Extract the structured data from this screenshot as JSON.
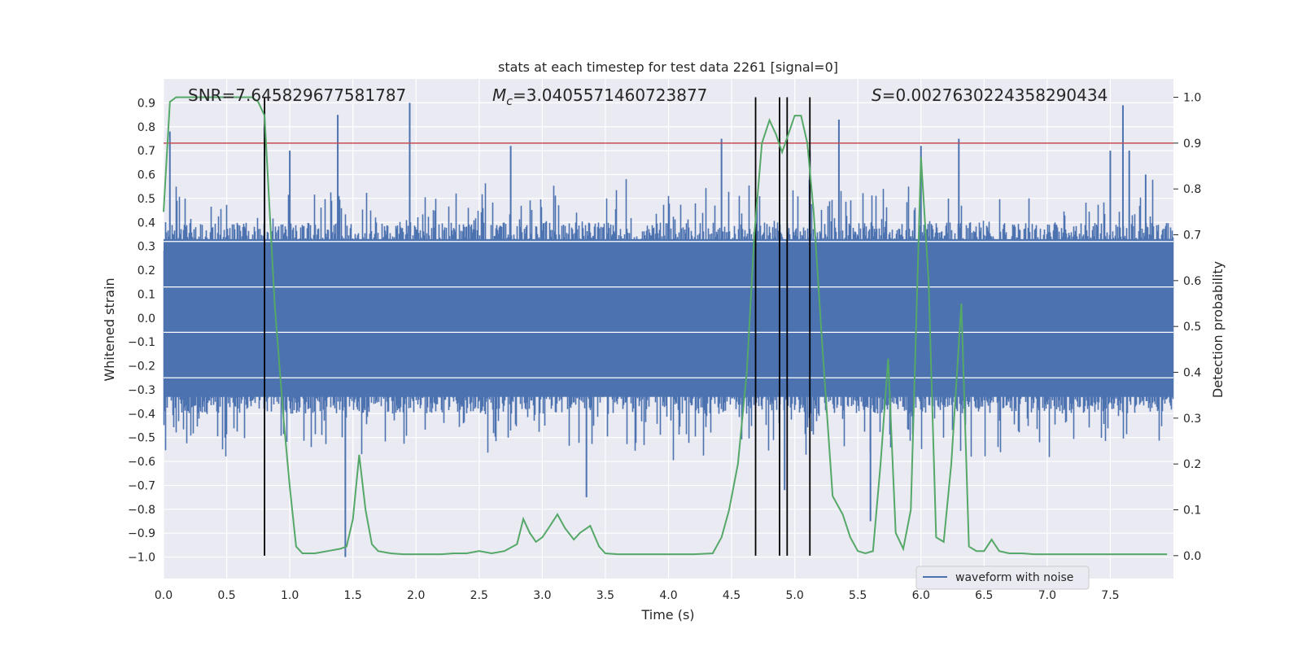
{
  "chart_data": {
    "type": "line",
    "title": "stats at each timestep for test data 2261 [signal=0]",
    "xlabel": "Time (s)",
    "ylabel": "Whitened strain",
    "y2label": "Detection probability",
    "xlim": [
      0,
      8
    ],
    "ylim": [
      -1.09,
      1.0
    ],
    "y2lim": [
      -0.05,
      1.04
    ],
    "xticks": [
      0.0,
      0.5,
      1.0,
      1.5,
      2.0,
      2.5,
      3.0,
      3.5,
      4.0,
      4.5,
      5.0,
      5.5,
      6.0,
      6.5,
      7.0,
      7.5
    ],
    "yticks": [
      0.9,
      0.8,
      0.7,
      0.6,
      0.5,
      0.4,
      0.3,
      0.2,
      0.1,
      0.0,
      -0.1,
      -0.2,
      -0.3,
      -0.4,
      -0.5,
      -0.6,
      -0.7,
      -0.8,
      -0.9,
      -1.0
    ],
    "y2ticks": [
      1.0,
      0.9,
      0.8,
      0.7,
      0.6,
      0.5,
      0.4,
      0.3,
      0.2,
      0.1,
      0.0
    ],
    "grid": true,
    "annotations": {
      "snr": "SNR=7.645829677581787",
      "mc_prefix": "M",
      "mc_sub": "c",
      "mc_value": "=3.0405571460723877",
      "s_prefix": "S",
      "s_value": "=0.002763022435829043​4"
    },
    "threshold": {
      "value": 0.9,
      "axis": "y2",
      "color": "#c44e52"
    },
    "vlines": [
      0.8,
      4.69,
      4.88,
      4.94,
      5.12
    ],
    "legend": {
      "entries": [
        "waveform with noise"
      ],
      "placement": "lower-right"
    },
    "series": [
      {
        "name": "waveform with noise",
        "color": "#4c72b0",
        "description": "noise strain, dense oscillation roughly within -0.45 to 0.45 with occasional spikes",
        "spikes_x": [
          0.05,
          0.8,
          1.0,
          1.38,
          1.44,
          1.95,
          2.75,
          3.35,
          4.42,
          4.92,
          5.12,
          5.35,
          5.6,
          6.0,
          6.3,
          7.5,
          7.6,
          7.65,
          7.78
        ],
        "spikes_y": [
          0.78,
          0.8,
          0.7,
          0.85,
          -1.0,
          0.9,
          0.72,
          -0.75,
          0.75,
          -0.72,
          0.7,
          0.83,
          -0.85,
          0.72,
          0.75,
          0.7,
          0.89,
          0.7,
          0.6
        ]
      },
      {
        "name": "detection probability",
        "color": "#55a868",
        "axis": "y2",
        "x": [
          0.0,
          0.05,
          0.1,
          0.2,
          0.3,
          0.4,
          0.5,
          0.6,
          0.7,
          0.75,
          0.8,
          0.88,
          0.95,
          1.0,
          1.05,
          1.1,
          1.15,
          1.2,
          1.3,
          1.4,
          1.45,
          1.5,
          1.55,
          1.6,
          1.65,
          1.7,
          1.8,
          1.9,
          2.0,
          2.1,
          2.2,
          2.3,
          2.4,
          2.5,
          2.6,
          2.7,
          2.8,
          2.85,
          2.9,
          2.95,
          3.0,
          3.05,
          3.12,
          3.18,
          3.25,
          3.3,
          3.38,
          3.45,
          3.5,
          3.6,
          3.8,
          4.0,
          4.2,
          4.35,
          4.42,
          4.48,
          4.55,
          4.62,
          4.68,
          4.74,
          4.8,
          4.85,
          4.9,
          4.95,
          5.0,
          5.05,
          5.1,
          5.15,
          5.22,
          5.3,
          5.38,
          5.44,
          5.5,
          5.56,
          5.62,
          5.68,
          5.74,
          5.8,
          5.86,
          5.92,
          6.0,
          6.06,
          6.12,
          6.18,
          6.24,
          6.32,
          6.38,
          6.44,
          6.5,
          6.56,
          6.62,
          6.7,
          6.8,
          6.9,
          7.0,
          7.2,
          7.4,
          7.6,
          7.8,
          7.95
        ],
        "y": [
          0.75,
          0.99,
          1.0,
          1.0,
          1.0,
          1.0,
          1.0,
          1.0,
          1.0,
          0.99,
          0.96,
          0.55,
          0.3,
          0.15,
          0.02,
          0.005,
          0.005,
          0.005,
          0.01,
          0.015,
          0.02,
          0.08,
          0.22,
          0.1,
          0.025,
          0.01,
          0.005,
          0.003,
          0.003,
          0.003,
          0.003,
          0.005,
          0.005,
          0.01,
          0.005,
          0.01,
          0.025,
          0.08,
          0.05,
          0.03,
          0.04,
          0.06,
          0.09,
          0.06,
          0.035,
          0.05,
          0.065,
          0.02,
          0.005,
          0.003,
          0.003,
          0.003,
          0.003,
          0.005,
          0.04,
          0.1,
          0.2,
          0.4,
          0.7,
          0.9,
          0.95,
          0.92,
          0.88,
          0.92,
          0.96,
          0.96,
          0.9,
          0.75,
          0.45,
          0.13,
          0.09,
          0.04,
          0.01,
          0.005,
          0.01,
          0.2,
          0.43,
          0.05,
          0.015,
          0.1,
          0.87,
          0.6,
          0.04,
          0.03,
          0.2,
          0.55,
          0.02,
          0.01,
          0.01,
          0.035,
          0.01,
          0.005,
          0.005,
          0.003,
          0.003,
          0.003,
          0.003,
          0.003,
          0.003,
          0.003
        ]
      }
    ]
  }
}
